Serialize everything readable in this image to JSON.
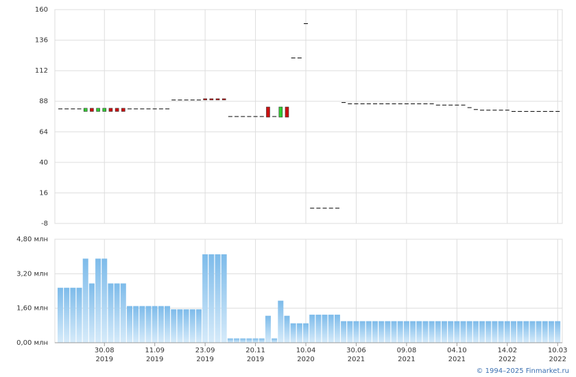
{
  "chart_data": [
    {
      "type": "candlestick",
      "ylim": [
        -8,
        160
      ],
      "yticks": [
        -8,
        16,
        40,
        64,
        88,
        112,
        136,
        160
      ],
      "grid": true,
      "up_color": "#33cc33",
      "down_color": "#cc1111",
      "flat_color": "#000000",
      "open": [
        82,
        82,
        82,
        82,
        80,
        82.5,
        80,
        80,
        82.5,
        82.5,
        82.5,
        82,
        82,
        82,
        82,
        82,
        82,
        82,
        89,
        89,
        89,
        89,
        89,
        90,
        90,
        90,
        90,
        76,
        76,
        76,
        76,
        76,
        76,
        83.5,
        76,
        75.5,
        83.5,
        122,
        122,
        149,
        4,
        4,
        4,
        4,
        4,
        87,
        86,
        86,
        86,
        86,
        86,
        86,
        86,
        86,
        86,
        86,
        86,
        86,
        86,
        86,
        85,
        85,
        85,
        85,
        85,
        83,
        81.5,
        81,
        81,
        81,
        81,
        81,
        80,
        80,
        80,
        80,
        80,
        80,
        80,
        80
      ],
      "close": [
        82,
        82,
        82,
        82,
        82.5,
        80,
        82.5,
        82.5,
        80,
        80,
        80,
        82,
        82,
        82,
        82,
        82,
        82,
        82,
        89,
        89,
        89,
        89,
        89,
        89,
        89,
        89,
        89,
        76,
        76,
        76,
        76,
        76,
        76,
        75.5,
        76,
        83.5,
        75.5,
        122,
        122,
        149,
        4,
        4,
        4,
        4,
        4,
        87,
        86,
        86,
        86,
        86,
        86,
        86,
        86,
        86,
        86,
        86,
        86,
        86,
        86,
        86,
        85,
        85,
        85,
        85,
        85,
        83,
        81.5,
        81,
        81,
        81,
        81,
        81,
        80,
        80,
        80,
        80,
        80,
        80,
        80,
        80
      ]
    },
    {
      "type": "bar",
      "color": "#7dbbea",
      "ylim": [
        0,
        4.8
      ],
      "yticks": [
        {
          "value": 0,
          "label": "0,00 млн"
        },
        {
          "value": 1.6,
          "label": "1,60 млн"
        },
        {
          "value": 3.2,
          "label": "3,20 млн"
        },
        {
          "value": 4.8,
          "label": "4,80 млн"
        }
      ],
      "grid": true,
      "values": [
        2.55,
        2.55,
        2.55,
        2.55,
        3.9,
        2.75,
        3.9,
        3.9,
        2.75,
        2.75,
        2.75,
        1.7,
        1.7,
        1.7,
        1.7,
        1.7,
        1.7,
        1.7,
        1.55,
        1.55,
        1.55,
        1.55,
        1.55,
        4.1,
        4.1,
        4.1,
        4.1,
        0.2,
        0.2,
        0.2,
        0.2,
        0.2,
        0.2,
        1.25,
        0.2,
        1.95,
        1.25,
        0.9,
        0.9,
        0.9,
        1.3,
        1.3,
        1.3,
        1.3,
        1.3,
        1,
        1,
        1,
        1,
        1,
        1,
        1,
        1,
        1,
        1,
        1,
        1,
        1,
        1,
        1,
        1,
        1,
        1,
        1,
        1,
        1,
        1,
        1,
        1,
        1,
        1,
        1,
        1,
        1,
        1,
        1,
        1,
        1,
        1,
        1
      ],
      "categories": [
        null,
        null,
        null,
        null,
        null,
        null,
        null,
        "30.08\n2019",
        null,
        null,
        null,
        null,
        null,
        null,
        null,
        "11.09\n2019",
        null,
        null,
        null,
        null,
        null,
        null,
        null,
        "23.09\n2019",
        null,
        null,
        null,
        null,
        null,
        null,
        null,
        "20.11\n2019",
        null,
        null,
        null,
        null,
        null,
        null,
        null,
        "10.04\n2020",
        null,
        null,
        null,
        null,
        null,
        null,
        null,
        "30.06\n2021",
        null,
        null,
        null,
        null,
        null,
        null,
        null,
        "09.08\n2021",
        null,
        null,
        null,
        null,
        null,
        null,
        null,
        "04.10\n2021",
        null,
        null,
        null,
        null,
        null,
        null,
        null,
        "14.02\n2022",
        null,
        null,
        null,
        null,
        null,
        null,
        null,
        "10.03\n2022"
      ]
    }
  ],
  "footer": "© 1994–2025 Finmarket.ru"
}
